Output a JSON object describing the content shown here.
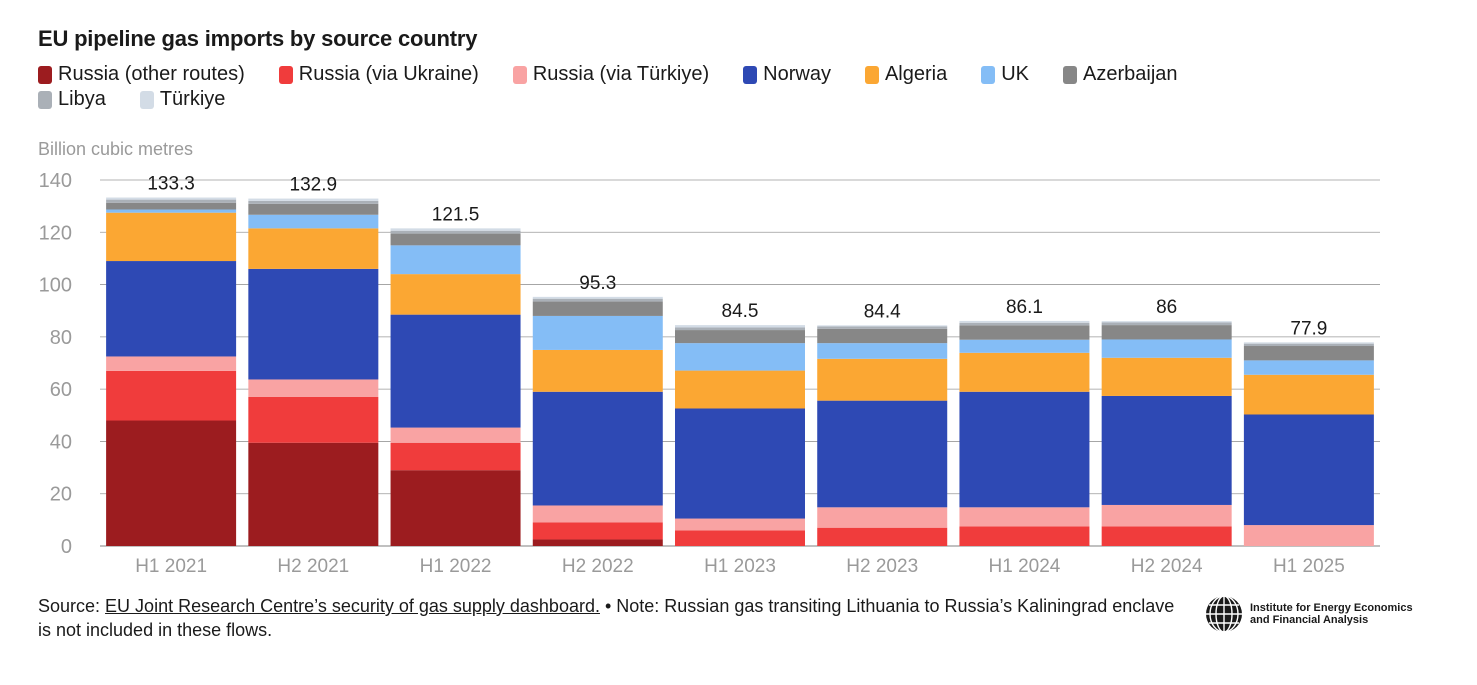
{
  "title": "EU pipeline gas imports by source country",
  "legend_rows": [
    [
      "Russia (other routes)",
      "Russia (via Ukraine)",
      "Russia (via Türkiye)",
      "Norway",
      "Algeria",
      "UK",
      "Azerbaijan"
    ],
    [
      "Libya",
      "Türkiye"
    ]
  ],
  "footer": {
    "source_prefix": "Source: ",
    "source_link": "EU Joint Research Centre’s security of gas supply dashboard.",
    "note": " • Note: Russian gas transiting Lithuania to Russia’s Kaliningrad enclave is not included in these flows.",
    "logo_line1": "Institute for Energy Economics",
    "logo_line2": "and Financial Analysis"
  },
  "chart_data": {
    "type": "bar",
    "stacked": true,
    "title": "EU pipeline gas imports by source country",
    "ylabel": "Billion cubic metres",
    "xlabel": "",
    "ylim": [
      0,
      140
    ],
    "yticks": [
      0,
      20,
      40,
      60,
      80,
      100,
      120,
      140
    ],
    "grid": true,
    "legend_position": "top",
    "categories": [
      "H1 2021",
      "H2 2021",
      "H1 2022",
      "H2 2022",
      "H1 2023",
      "H2 2023",
      "H1 2024",
      "H2 2024",
      "H1 2025"
    ],
    "totals": [
      133.3,
      132.9,
      121.5,
      95.3,
      84.5,
      84.4,
      86.1,
      86,
      77.9
    ],
    "total_labels": [
      "133.3",
      "132.9",
      "121.5",
      "95.3",
      "84.5",
      "84.4",
      "86.1",
      "86",
      "77.9"
    ],
    "series": [
      {
        "name": "Russia (other routes)",
        "color": "#9c1c1f",
        "values": [
          48.0,
          39.5,
          29.0,
          2.5,
          0,
          0,
          0,
          0,
          0
        ]
      },
      {
        "name": "Russia (via Ukraine)",
        "color": "#f03c3c",
        "values": [
          19.0,
          17.5,
          10.5,
          6.5,
          6.0,
          7.0,
          7.5,
          7.5,
          0
        ]
      },
      {
        "name": "Russia (via Türkiye)",
        "color": "#f9a3a3",
        "values": [
          5.5,
          6.7,
          5.8,
          6.5,
          4.5,
          7.8,
          7.3,
          8.2,
          8.0
        ]
      },
      {
        "name": "Norway",
        "color": "#2e49b4",
        "values": [
          36.5,
          42.3,
          43.2,
          43.5,
          42.1,
          40.8,
          44.2,
          41.7,
          42.3
        ]
      },
      {
        "name": "Algeria",
        "color": "#fba733",
        "values": [
          18.5,
          15.5,
          15.5,
          16.0,
          14.5,
          16.0,
          14.9,
          14.6,
          15.2
        ]
      },
      {
        "name": "UK",
        "color": "#84bdf6",
        "values": [
          1.2,
          5.2,
          11.0,
          13.0,
          10.5,
          6.0,
          5.0,
          7.0,
          5.5
        ]
      },
      {
        "name": "Azerbaijan",
        "color": "#878787",
        "values": [
          2.6,
          4.2,
          4.5,
          5.5,
          5.0,
          5.5,
          5.5,
          5.5,
          5.5
        ]
      },
      {
        "name": "Libya",
        "color": "#aab0b7",
        "values": [
          1.2,
          1.1,
          1.1,
          1.1,
          1.0,
          0.9,
          1.0,
          1.0,
          0.9
        ]
      },
      {
        "name": "Türkiye",
        "color": "#d3dce6",
        "values": [
          0.8,
          0.9,
          0.9,
          0.7,
          0.9,
          0.4,
          0.7,
          0.5,
          0.5
        ]
      }
    ]
  }
}
